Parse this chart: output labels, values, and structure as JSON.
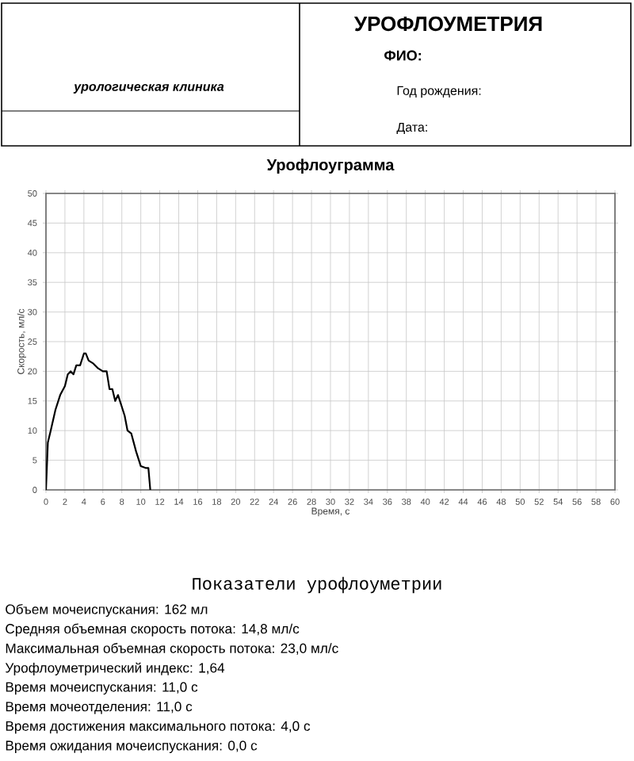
{
  "chart_data": {
    "type": "line",
    "title": "Урофлоуграмма",
    "xlabel": "Время, с",
    "ylabel": "Скорость, мл/с",
    "x": [
      0,
      0.1,
      0.2,
      0.5,
      1,
      1.5,
      2,
      2.3,
      2.6,
      2.9,
      3.2,
      3.6,
      4,
      4.2,
      4.5,
      5,
      5.5,
      6,
      6.4,
      6.7,
      7,
      7.3,
      7.6,
      8,
      8.3,
      8.6,
      9,
      9.5,
      10,
      10.5,
      10.8,
      11
    ],
    "values": [
      0,
      4,
      8,
      10,
      13.5,
      16,
      17.5,
      19.5,
      20,
      19.5,
      21,
      21,
      23,
      23,
      21.8,
      21.3,
      20.5,
      20,
      20,
      17,
      17,
      15,
      16,
      14,
      12.5,
      10,
      9.5,
      6.5,
      4,
      3.7,
      3.7,
      0
    ],
    "color": "#000000",
    "marker": "none",
    "grid": true,
    "xlim": [
      0,
      60
    ],
    "ylim": [
      0,
      50
    ],
    "xticks": [
      0,
      2,
      4,
      6,
      8,
      10,
      12,
      14,
      16,
      18,
      20,
      22,
      24,
      26,
      28,
      30,
      32,
      34,
      36,
      38,
      40,
      42,
      44,
      46,
      48,
      50,
      52,
      54,
      56,
      58,
      60
    ],
    "yticks": [
      0,
      5,
      10,
      15,
      20,
      25,
      30,
      35,
      40,
      45,
      50
    ],
    "annotations": [
      "урологическая клиника",
      "УРОФЛОУМЕТРИЯ",
      "ФИО:",
      "Год рождения:",
      "Дата:",
      "Показатели урофлоуметрии",
      "Объем мочеиспускания: 162 мл",
      "Средняя объемная скорость потока: 14,8 мл/с",
      "Максимальная объемная скорость потока: 23,0 мл/с",
      "Урофлоуметрический индекс: 1,64",
      "Время мочеиспускания: 11,0 с",
      "Время мочеотделения: 11,0 с",
      "Время достижения максимального потока: 4,0 с",
      "Время ожидания мочеиспускания: 0,0 с"
    ]
  }
}
